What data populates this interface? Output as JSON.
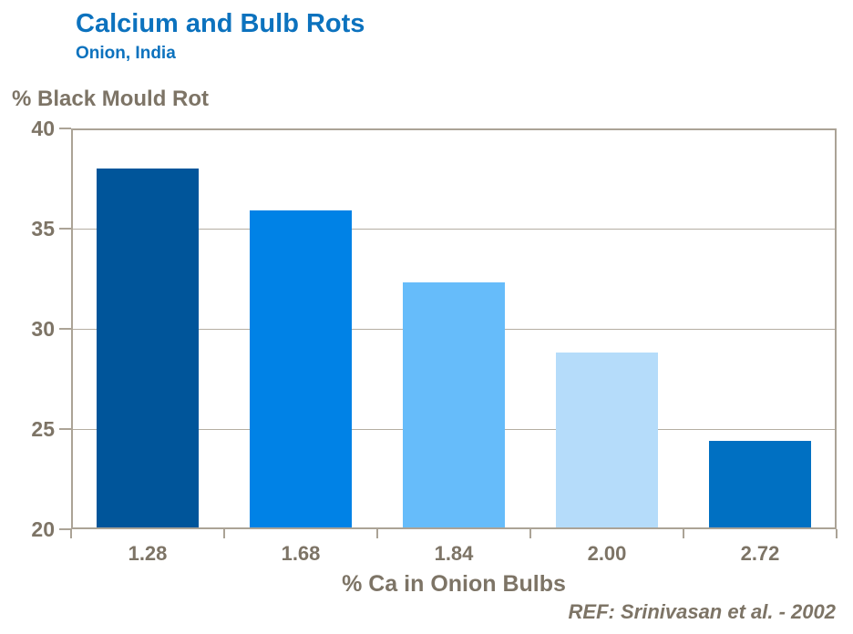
{
  "header": {
    "title": "Calcium and Bulb Rots",
    "subtitle": "Onion, India"
  },
  "footer": {
    "reference": "REF: Srinivasan et al. - 2002"
  },
  "colors": {
    "title_blue": "#0C72BE",
    "label_brown": "#7D7466",
    "frame_tan": "#ABA396",
    "gridline_tan": "#B5AEA2",
    "background": "#FFFFFF"
  },
  "chart_data": {
    "type": "bar",
    "title": "Calcium and Bulb Rots",
    "subtitle": "Onion, India",
    "categories": [
      "1.28",
      "1.68",
      "1.84",
      "2.00",
      "2.72"
    ],
    "values": [
      38.0,
      35.9,
      32.3,
      28.8,
      24.4
    ],
    "bar_colors": [
      "#00559A",
      "#0082E6",
      "#66BCFA",
      "#B5DCFA",
      "#0070C2"
    ],
    "xlabel": "% Ca in Onion Bulbs",
    "ylabel": "% Black Mould Rot",
    "ylim": [
      20,
      40
    ],
    "yticks": [
      20,
      25,
      30,
      35,
      40
    ],
    "grid": "horizontal-inner",
    "legend": "none",
    "plot_border": true
  }
}
